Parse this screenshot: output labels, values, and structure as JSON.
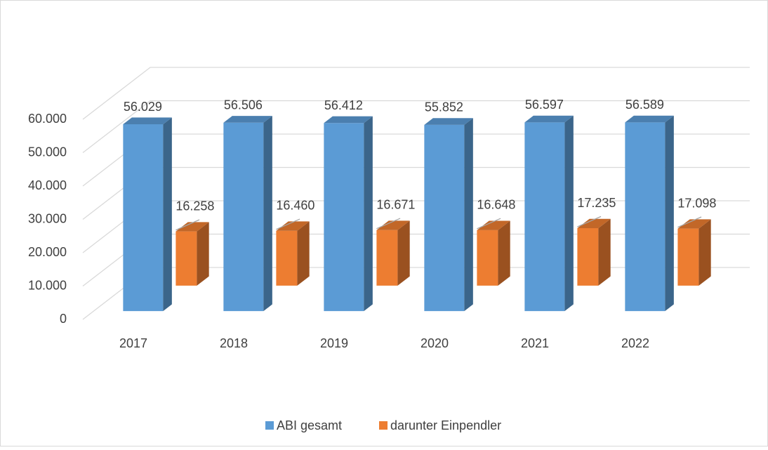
{
  "chart_data": {
    "type": "bar3d",
    "categories": [
      "2017",
      "2018",
      "2019",
      "2020",
      "2021",
      "2022"
    ],
    "series": [
      {
        "name": "ABI gesamt",
        "color": "#5b9bd5",
        "values": [
          56029,
          56506,
          56412,
          55852,
          56597,
          56589
        ],
        "value_labels": [
          "56.029",
          "56.506",
          "56.412",
          "55.852",
          "56.597",
          "56.589"
        ]
      },
      {
        "name": "darunter Einpendler",
        "color": "#ed7d31",
        "values": [
          16258,
          16460,
          16671,
          16648,
          17235,
          17098
        ],
        "value_labels": [
          "16.258",
          "16.460",
          "16.671",
          "16.648",
          "17.235",
          "17.098"
        ]
      }
    ],
    "ylim": [
      0,
      60000
    ],
    "yticks": [
      0,
      {
        "value": 10000,
        "label": "10.000"
      },
      {
        "value": 20000,
        "label": "20.000"
      },
      {
        "value": 30000,
        "label": "30.000"
      },
      {
        "value": 40000,
        "label": "40.000"
      },
      {
        "value": 50000,
        "label": "50.000"
      },
      {
        "value": 60000,
        "label": "60.000"
      }
    ],
    "grid": true,
    "legend": "bottom"
  }
}
